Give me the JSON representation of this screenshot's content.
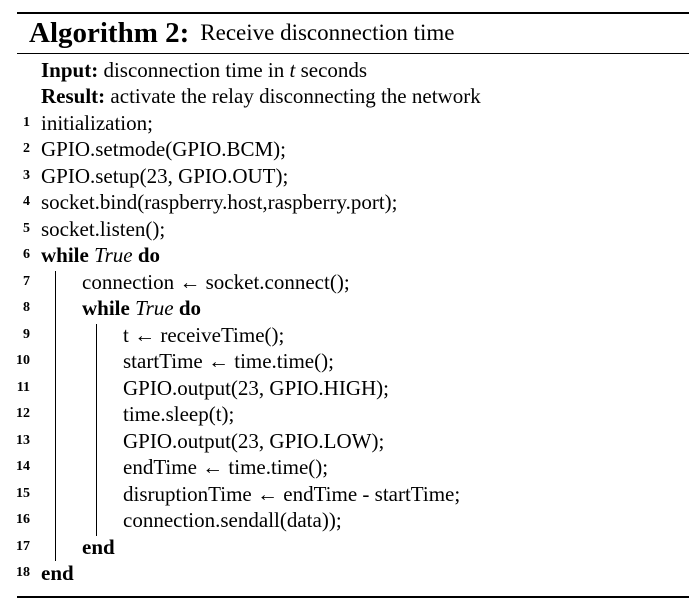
{
  "algorithm": {
    "label": "Algorithm 2:",
    "title": "Receive disconnection time",
    "input_key": "Input:",
    "input_pre": "disconnection time in ",
    "input_var": "t",
    "input_post": " seconds",
    "result_key": "Result:",
    "result_text": "activate the relay disconnecting the network",
    "lines": [
      {
        "num": "1",
        "text": "initialization;"
      },
      {
        "num": "2",
        "text": "GPIO.setmode(GPIO.BCM);"
      },
      {
        "num": "3",
        "text": "GPIO.setup(23, GPIO.OUT);"
      },
      {
        "num": "4",
        "text": "socket.bind(raspberry.host,raspberry.port);"
      },
      {
        "num": "5",
        "text": "socket.listen();"
      },
      {
        "num": "6",
        "kw1": "while",
        "cond": "True",
        "kw2": "do"
      },
      {
        "num": "7",
        "text": "connection ← socket.connect();"
      },
      {
        "num": "8",
        "kw1": "while",
        "cond": "True",
        "kw2": "do"
      },
      {
        "num": "9",
        "text": "t ← receiveTime();"
      },
      {
        "num": "10",
        "text": "startTime ← time.time();"
      },
      {
        "num": "11",
        "text": "GPIO.output(23, GPIO.HIGH);"
      },
      {
        "num": "12",
        "text": "time.sleep(t);"
      },
      {
        "num": "13",
        "text": "GPIO.output(23, GPIO.LOW);"
      },
      {
        "num": "14",
        "text": "endTime ← time.time();"
      },
      {
        "num": "15",
        "text": "disruptionTime ← endTime - startTime;"
      },
      {
        "num": "16",
        "text": "connection.sendall(data));"
      },
      {
        "num": "17",
        "kw": "end"
      },
      {
        "num": "18",
        "kw": "end"
      }
    ]
  }
}
